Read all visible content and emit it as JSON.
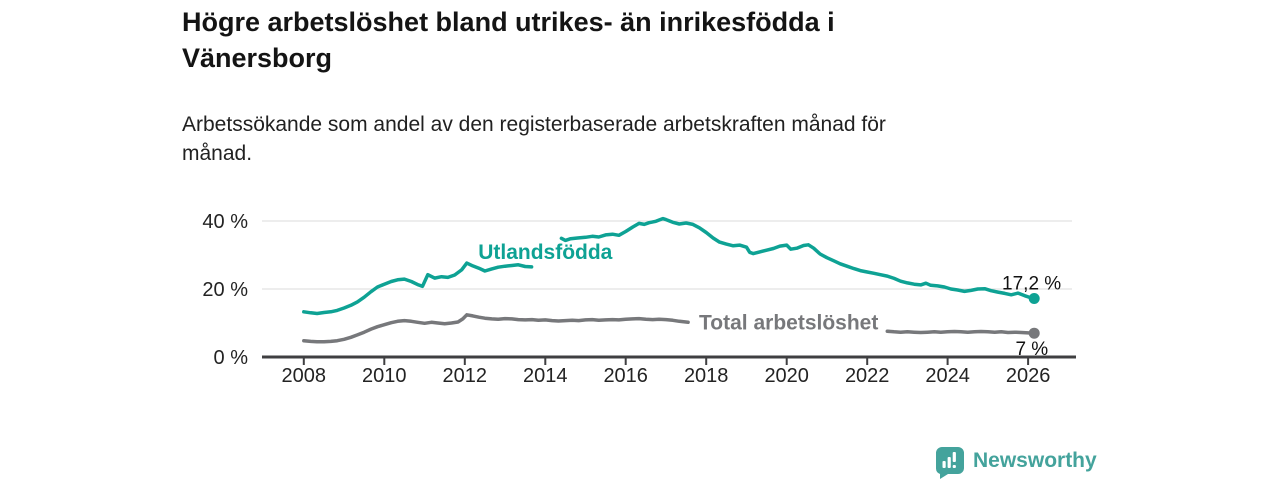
{
  "header": {
    "title_lines": [
      "Högre arbetslöshet bland utrikes- än inrikesfödda i",
      "Vänersborg"
    ],
    "subtitle_lines": [
      "Arbetssökande som andel av den registerbaserade arbetskraften månad för",
      "månad."
    ]
  },
  "chart_data": {
    "type": "line",
    "title": "Högre arbetslöshet bland utrikes- än inrikesfödda i Vänersborg",
    "subtitle": "Arbetssökande som andel av den registerbaserade arbetskraften månad för månad.",
    "xlabel": "",
    "ylabel": "",
    "x_axis": {
      "lim": [
        2006.96,
        2027.19
      ],
      "ticks": [
        2008,
        2010,
        2012,
        2014,
        2016,
        2018,
        2020,
        2022,
        2024,
        2026
      ]
    },
    "y_axis": {
      "lim": [
        0,
        44.7
      ],
      "ticks": [
        {
          "value": 0,
          "label": "0 %"
        },
        {
          "value": 20,
          "label": "20 %"
        },
        {
          "value": 40,
          "label": "40 %"
        }
      ],
      "grid_values": [
        20,
        40
      ]
    },
    "colors": {
      "axis": "#3f3f41",
      "grid": "#dbdbdb",
      "text": "#232323"
    },
    "legend_position": "inline-labels",
    "series": [
      {
        "name": "Utlandsfödda",
        "slug": "utlandsfodda",
        "color": "#0ea294",
        "inline_label": {
          "text": "Utlandsfödda",
          "x": 2014.0,
          "y": 30.9
        },
        "end_label": "17,2 %",
        "end_value": 17.2,
        "segments": [
          [
            [
              2008,
              13.3
            ],
            [
              2008.17,
              13
            ],
            [
              2008.33,
              12.8
            ],
            [
              2008.5,
              13.1
            ],
            [
              2008.67,
              13.3
            ],
            [
              2008.83,
              13.7
            ],
            [
              2009,
              14.4
            ],
            [
              2009.17,
              15.2
            ],
            [
              2009.33,
              16.2
            ],
            [
              2009.5,
              17.6
            ],
            [
              2009.67,
              19.2
            ],
            [
              2009.83,
              20.6
            ],
            [
              2010,
              21.4
            ],
            [
              2010.17,
              22.2
            ],
            [
              2010.33,
              22.7
            ],
            [
              2010.5,
              22.9
            ],
            [
              2010.67,
              22.2
            ],
            [
              2010.83,
              21.3
            ],
            [
              2010.95,
              20.8
            ],
            [
              2011.08,
              24.2
            ],
            [
              2011.25,
              23.2
            ],
            [
              2011.42,
              23.6
            ],
            [
              2011.58,
              23.4
            ],
            [
              2011.75,
              24.1
            ],
            [
              2011.92,
              25.6
            ],
            [
              2012.05,
              27.6
            ],
            [
              2012.2,
              26.8
            ],
            [
              2012.35,
              26.1
            ],
            [
              2012.5,
              25.3
            ],
            [
              2012.67,
              25.9
            ],
            [
              2012.83,
              26.4
            ],
            [
              2013,
              26.7
            ],
            [
              2013.17,
              26.9
            ],
            [
              2013.33,
              27.1
            ],
            [
              2013.5,
              26.6
            ],
            [
              2013.66,
              26.5
            ]
          ],
          [
            [
              2014.4,
              34.9
            ],
            [
              2014.5,
              34.3
            ],
            [
              2014.63,
              34.8
            ],
            [
              2014.8,
              35
            ],
            [
              2015,
              35.2
            ],
            [
              2015.17,
              35.5
            ],
            [
              2015.33,
              35.3
            ],
            [
              2015.5,
              35.9
            ],
            [
              2015.67,
              36.1
            ],
            [
              2015.83,
              35.8
            ],
            [
              2016,
              36.9
            ],
            [
              2016.17,
              38.2
            ],
            [
              2016.33,
              39.3
            ],
            [
              2016.46,
              39
            ],
            [
              2016.58,
              39.5
            ],
            [
              2016.75,
              39.9
            ],
            [
              2016.92,
              40.7
            ],
            [
              2017,
              40.4
            ],
            [
              2017.17,
              39.6
            ],
            [
              2017.33,
              39.1
            ],
            [
              2017.5,
              39.4
            ],
            [
              2017.67,
              39
            ],
            [
              2017.83,
              38
            ],
            [
              2018,
              36.6
            ],
            [
              2018.17,
              35
            ],
            [
              2018.33,
              33.8
            ],
            [
              2018.5,
              33.2
            ],
            [
              2018.67,
              32.7
            ],
            [
              2018.83,
              32.9
            ],
            [
              2019,
              32.3
            ],
            [
              2019.08,
              30.8
            ],
            [
              2019.17,
              30.4
            ],
            [
              2019.33,
              30.9
            ],
            [
              2019.5,
              31.4
            ],
            [
              2019.67,
              31.9
            ],
            [
              2019.83,
              32.6
            ],
            [
              2020,
              32.9
            ],
            [
              2020.1,
              31.7
            ],
            [
              2020.25,
              32
            ],
            [
              2020.42,
              32.8
            ],
            [
              2020.54,
              33
            ],
            [
              2020.67,
              32
            ],
            [
              2020.83,
              30.3
            ],
            [
              2021,
              29.2
            ],
            [
              2021.17,
              28.3
            ],
            [
              2021.33,
              27.4
            ],
            [
              2021.5,
              26.7
            ],
            [
              2021.67,
              26
            ],
            [
              2021.83,
              25.4
            ],
            [
              2022,
              25
            ],
            [
              2022.17,
              24.6
            ],
            [
              2022.33,
              24.2
            ],
            [
              2022.5,
              23.8
            ],
            [
              2022.67,
              23.1
            ],
            [
              2022.83,
              22.3
            ],
            [
              2023,
              21.8
            ],
            [
              2023.17,
              21.4
            ],
            [
              2023.33,
              21.2
            ],
            [
              2023.46,
              21.7
            ],
            [
              2023.58,
              21.1
            ],
            [
              2023.75,
              20.9
            ],
            [
              2023.92,
              20.6
            ],
            [
              2024.08,
              20
            ],
            [
              2024.25,
              19.7
            ],
            [
              2024.42,
              19.3
            ],
            [
              2024.58,
              19.6
            ],
            [
              2024.75,
              20
            ],
            [
              2024.92,
              20.1
            ],
            [
              2025.08,
              19.5
            ],
            [
              2025.25,
              19.1
            ],
            [
              2025.42,
              18.7
            ],
            [
              2025.58,
              18.3
            ],
            [
              2025.75,
              18.8
            ],
            [
              2025.92,
              18
            ],
            [
              2026.05,
              17.5
            ],
            [
              2026.15,
              17.2
            ]
          ]
        ]
      },
      {
        "name": "Total arbetslöshet",
        "slug": "total-arbetsloshet",
        "color": "#77787b",
        "inline_label": {
          "text": "Total arbetslöshet",
          "x": 2020.05,
          "y": 10.1
        },
        "end_label": "7 %",
        "end_value": 7,
        "segments": [
          [
            [
              2008,
              4.8
            ],
            [
              2008.17,
              4.6
            ],
            [
              2008.33,
              4.5
            ],
            [
              2008.5,
              4.5
            ],
            [
              2008.67,
              4.6
            ],
            [
              2008.83,
              4.8
            ],
            [
              2009,
              5.2
            ],
            [
              2009.17,
              5.8
            ],
            [
              2009.33,
              6.5
            ],
            [
              2009.5,
              7.3
            ],
            [
              2009.67,
              8.2
            ],
            [
              2009.83,
              8.9
            ],
            [
              2010,
              9.5
            ],
            [
              2010.17,
              10.1
            ],
            [
              2010.33,
              10.5
            ],
            [
              2010.5,
              10.7
            ],
            [
              2010.67,
              10.5
            ],
            [
              2010.83,
              10.2
            ],
            [
              2011,
              9.9
            ],
            [
              2011.17,
              10.2
            ],
            [
              2011.33,
              10
            ],
            [
              2011.5,
              9.8
            ],
            [
              2011.67,
              10
            ],
            [
              2011.83,
              10.3
            ],
            [
              2011.95,
              11.2
            ],
            [
              2012.05,
              12.4
            ],
            [
              2012.2,
              12.1
            ],
            [
              2012.35,
              11.7
            ],
            [
              2012.5,
              11.4
            ],
            [
              2012.67,
              11.2
            ],
            [
              2012.83,
              11.1
            ],
            [
              2013,
              11.3
            ],
            [
              2013.17,
              11.2
            ],
            [
              2013.33,
              11
            ],
            [
              2013.5,
              10.9
            ],
            [
              2013.67,
              11
            ],
            [
              2013.83,
              10.8
            ],
            [
              2014,
              10.9
            ],
            [
              2014.17,
              10.7
            ],
            [
              2014.33,
              10.6
            ],
            [
              2014.5,
              10.7
            ],
            [
              2014.67,
              10.8
            ],
            [
              2014.83,
              10.7
            ],
            [
              2015,
              10.9
            ],
            [
              2015.17,
              11
            ],
            [
              2015.33,
              10.8
            ],
            [
              2015.5,
              10.9
            ],
            [
              2015.67,
              11
            ],
            [
              2015.83,
              10.9
            ],
            [
              2016,
              11.1
            ],
            [
              2016.17,
              11.2
            ],
            [
              2016.33,
              11.3
            ],
            [
              2016.5,
              11.1
            ],
            [
              2016.67,
              11
            ],
            [
              2016.83,
              11.1
            ],
            [
              2017,
              11
            ],
            [
              2017.17,
              10.8
            ],
            [
              2017.33,
              10.5
            ],
            [
              2017.55,
              10.2
            ]
          ],
          [
            [
              2022.5,
              7.6
            ],
            [
              2022.67,
              7.4
            ],
            [
              2022.83,
              7.3
            ],
            [
              2023,
              7.4
            ],
            [
              2023.17,
              7.3
            ],
            [
              2023.33,
              7.2
            ],
            [
              2023.5,
              7.3
            ],
            [
              2023.67,
              7.4
            ],
            [
              2023.83,
              7.3
            ],
            [
              2024,
              7.4
            ],
            [
              2024.17,
              7.5
            ],
            [
              2024.33,
              7.4
            ],
            [
              2024.5,
              7.3
            ],
            [
              2024.67,
              7.4
            ],
            [
              2024.83,
              7.5
            ],
            [
              2025,
              7.4
            ],
            [
              2025.17,
              7.3
            ],
            [
              2025.33,
              7.4
            ],
            [
              2025.5,
              7.2
            ],
            [
              2025.67,
              7.3
            ],
            [
              2025.83,
              7.2
            ],
            [
              2026,
              7.1
            ],
            [
              2026.15,
              7
            ]
          ]
        ]
      }
    ]
  },
  "footer": {
    "brand": "Newsworthy",
    "brand_color": "#44a39c",
    "logo_icon": "bar-chart-speech-bubble-icon"
  }
}
